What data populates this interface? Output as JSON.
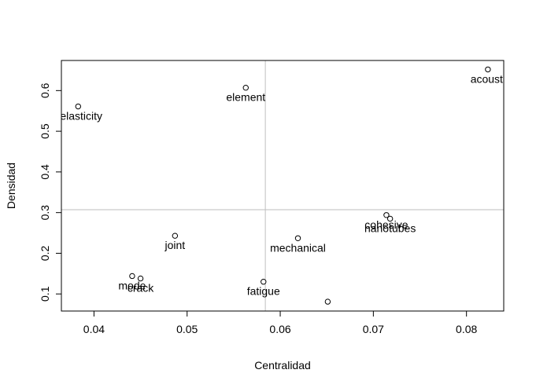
{
  "chart_data": {
    "type": "scatter",
    "title": "",
    "xlabel": "Centralidad",
    "ylabel": "Densidad",
    "xlim": [
      0.0365,
      0.084
    ],
    "ylim": [
      0.058,
      0.674
    ],
    "x_ticks": [
      0.04,
      0.05,
      0.06,
      0.07,
      0.08
    ],
    "x_tick_labels": [
      "0.04",
      "0.05",
      "0.06",
      "0.07",
      "0.08"
    ],
    "y_ticks": [
      0.1,
      0.2,
      0.3,
      0.4,
      0.5,
      0.6
    ],
    "y_tick_labels": [
      "0.1",
      "0.2",
      "0.3",
      "0.4",
      "0.5",
      "0.6"
    ],
    "reference_lines": {
      "x": 0.0584,
      "y": 0.307
    },
    "grid": false,
    "legend": "none",
    "colors": {
      "points": "#000000",
      "reference": "#bebebe",
      "frame": "#000000"
    },
    "points": [
      {
        "x": 0.0383,
        "y": 0.561,
        "label": "oelasticity"
      },
      {
        "x": 0.0563,
        "y": 0.607,
        "label": "element"
      },
      {
        "x": 0.0823,
        "y": 0.652,
        "label": "acousti"
      },
      {
        "x": 0.0487,
        "y": 0.243,
        "label": "joint"
      },
      {
        "x": 0.0619,
        "y": 0.237,
        "label": "mechanical"
      },
      {
        "x": 0.0714,
        "y": 0.294,
        "label": "cohesive"
      },
      {
        "x": 0.0718,
        "y": 0.285,
        "label": "nanotubes"
      },
      {
        "x": 0.0441,
        "y": 0.144,
        "label": "mode"
      },
      {
        "x": 0.045,
        "y": 0.138,
        "label": "crack"
      },
      {
        "x": 0.0582,
        "y": 0.13,
        "label": "fatigue"
      },
      {
        "x": 0.0651,
        "y": 0.081,
        "label": ""
      }
    ]
  }
}
